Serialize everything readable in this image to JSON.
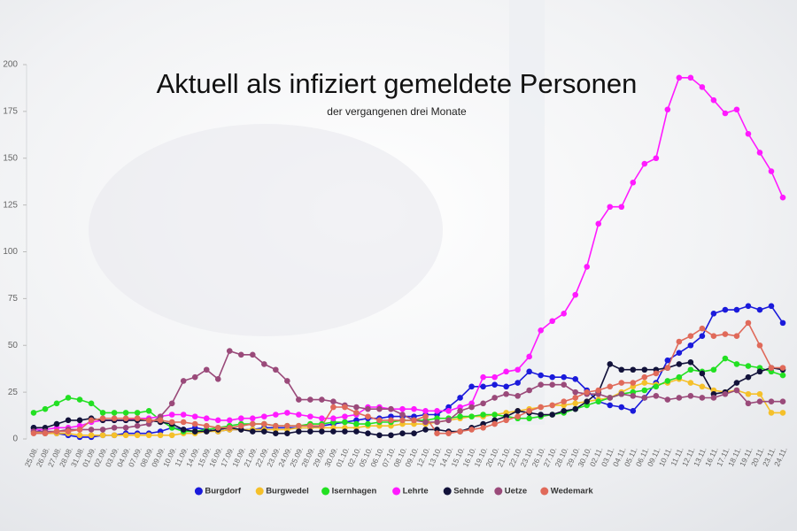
{
  "chart_data": {
    "type": "line",
    "title": "Aktuell als infiziert gemeldete Personen",
    "subtitle": "der vergangenen drei Monate",
    "categories": [
      "25.08.",
      "26.08.",
      "27.08.",
      "28.08.",
      "31.08.",
      "01.09.",
      "02.09.",
      "03.09.",
      "04.09.",
      "07.09.",
      "08.09.",
      "09.09.",
      "10.09.",
      "11.09.",
      "14.09.",
      "15.09.",
      "16.09.",
      "17.09.",
      "18.09.",
      "21.09.",
      "22.09.",
      "23.09.",
      "24.09.",
      "25.09.",
      "28.09.",
      "29.09.",
      "30.09.",
      "01.10.",
      "02.10.",
      "05.10.",
      "06.10.",
      "07.10.",
      "08.10.",
      "09.10.",
      "12.10.",
      "13.10.",
      "14.10.",
      "15.10.",
      "16.10.",
      "19.10.",
      "20.10.",
      "21.10.",
      "22.10.",
      "23.10.",
      "26.10.",
      "27.10.",
      "28.10.",
      "29.10.",
      "30.10.",
      "02.11.",
      "03.11.",
      "04.11.",
      "05.11.",
      "06.11.",
      "09.11.",
      "10.11.",
      "11.11.",
      "12.11.",
      "13.11.",
      "16.11.",
      "17.11.",
      "18.11.",
      "19.11.",
      "20.11.",
      "23.11.",
      "24.11."
    ],
    "series": [
      {
        "name": "Burgdorf",
        "color": "#1a1adb",
        "values": [
          6,
          3,
          3,
          2,
          1,
          1,
          2,
          2,
          3,
          3,
          3,
          4,
          6,
          5,
          6,
          5,
          4,
          5,
          5,
          5,
          6,
          6,
          6,
          6,
          6,
          7,
          8,
          9,
          10,
          11,
          11,
          12,
          12,
          12,
          13,
          13,
          17,
          22,
          28,
          28,
          29,
          28,
          30,
          36,
          34,
          33,
          33,
          32,
          26,
          20,
          18,
          17,
          15,
          22,
          30,
          42,
          46,
          50,
          55,
          67,
          69,
          69,
          71,
          69,
          71,
          62
        ]
      },
      {
        "name": "Burgwedel",
        "color": "#f5c02a",
        "values": [
          4,
          3,
          3,
          3,
          2,
          2,
          2,
          2,
          2,
          2,
          2,
          2,
          2,
          3,
          3,
          4,
          4,
          5,
          5,
          5,
          5,
          5,
          5,
          6,
          6,
          6,
          6,
          6,
          6,
          7,
          7,
          7,
          8,
          8,
          8,
          9,
          10,
          11,
          12,
          12,
          13,
          14,
          15,
          16,
          17,
          18,
          18,
          19,
          20,
          21,
          22,
          25,
          28,
          30,
          29,
          30,
          32,
          30,
          28,
          26,
          25,
          26,
          24,
          24,
          14,
          14
        ]
      },
      {
        "name": "Isernhagen",
        "color": "#22e022",
        "values": [
          14,
          16,
          19,
          22,
          21,
          19,
          14,
          14,
          14,
          14,
          15,
          10,
          6,
          4,
          4,
          5,
          6,
          7,
          8,
          8,
          8,
          7,
          7,
          7,
          8,
          8,
          9,
          9,
          8,
          8,
          9,
          9,
          10,
          10,
          10,
          11,
          11,
          12,
          12,
          13,
          13,
          12,
          11,
          11,
          12,
          13,
          14,
          16,
          18,
          20,
          22,
          24,
          25,
          26,
          28,
          31,
          33,
          37,
          36,
          37,
          43,
          40,
          39,
          38,
          36,
          34
        ]
      },
      {
        "name": "Lehrte",
        "color": "#ff1aff",
        "values": [
          5,
          5,
          6,
          6,
          7,
          9,
          10,
          10,
          10,
          11,
          11,
          12,
          13,
          13,
          12,
          11,
          10,
          10,
          11,
          11,
          12,
          13,
          14,
          13,
          12,
          11,
          11,
          12,
          13,
          17,
          17,
          16,
          16,
          16,
          15,
          15,
          15,
          17,
          19,
          33,
          33,
          36,
          37,
          44,
          58,
          63,
          67,
          77,
          92,
          115,
          124,
          124,
          137,
          147,
          150,
          176,
          193,
          193,
          188,
          181,
          174,
          176,
          163,
          153,
          143,
          129
        ]
      },
      {
        "name": "Sehnde",
        "color": "#12123a",
        "values": [
          6,
          6,
          8,
          10,
          10,
          11,
          10,
          10,
          10,
          10,
          10,
          9,
          8,
          5,
          4,
          4,
          5,
          6,
          5,
          4,
          4,
          3,
          3,
          4,
          4,
          4,
          4,
          4,
          4,
          3,
          2,
          2,
          3,
          3,
          5,
          5,
          4,
          4,
          6,
          8,
          10,
          12,
          15,
          14,
          13,
          13,
          15,
          16,
          20,
          25,
          40,
          37,
          37,
          37,
          37,
          38,
          40,
          41,
          35,
          24,
          25,
          30,
          33,
          36,
          38,
          37
        ]
      },
      {
        "name": "Uetze",
        "color": "#9a4a7a",
        "values": [
          4,
          4,
          4,
          5,
          5,
          5,
          5,
          6,
          6,
          7,
          8,
          12,
          19,
          31,
          33,
          37,
          32,
          47,
          45,
          45,
          40,
          37,
          31,
          21,
          21,
          21,
          20,
          18,
          17,
          16,
          16,
          16,
          13,
          10,
          9,
          9,
          10,
          15,
          17,
          19,
          22,
          24,
          23,
          26,
          29,
          29,
          29,
          25,
          24,
          24,
          22,
          24,
          23,
          22,
          23,
          21,
          22,
          23,
          22,
          22,
          24,
          26,
          19,
          20,
          20,
          20
        ]
      },
      {
        "name": "Wedemark",
        "color": "#e06a5a",
        "values": [
          3,
          3,
          4,
          4,
          5,
          10,
          11,
          11,
          11,
          11,
          10,
          10,
          9,
          9,
          8,
          7,
          6,
          6,
          7,
          8,
          8,
          7,
          7,
          7,
          7,
          7,
          17,
          17,
          14,
          12,
          10,
          10,
          10,
          10,
          12,
          3,
          3,
          4,
          5,
          6,
          8,
          10,
          12,
          15,
          17,
          18,
          20,
          22,
          25,
          26,
          28,
          30,
          30,
          33,
          35,
          38,
          52,
          55,
          59,
          55,
          56,
          55,
          62,
          50,
          38,
          38
        ]
      }
    ],
    "ylim": [
      0,
      200
    ],
    "yticks": [
      0,
      25,
      50,
      75,
      100,
      125,
      150,
      175,
      200
    ],
    "legend": "bottom"
  }
}
